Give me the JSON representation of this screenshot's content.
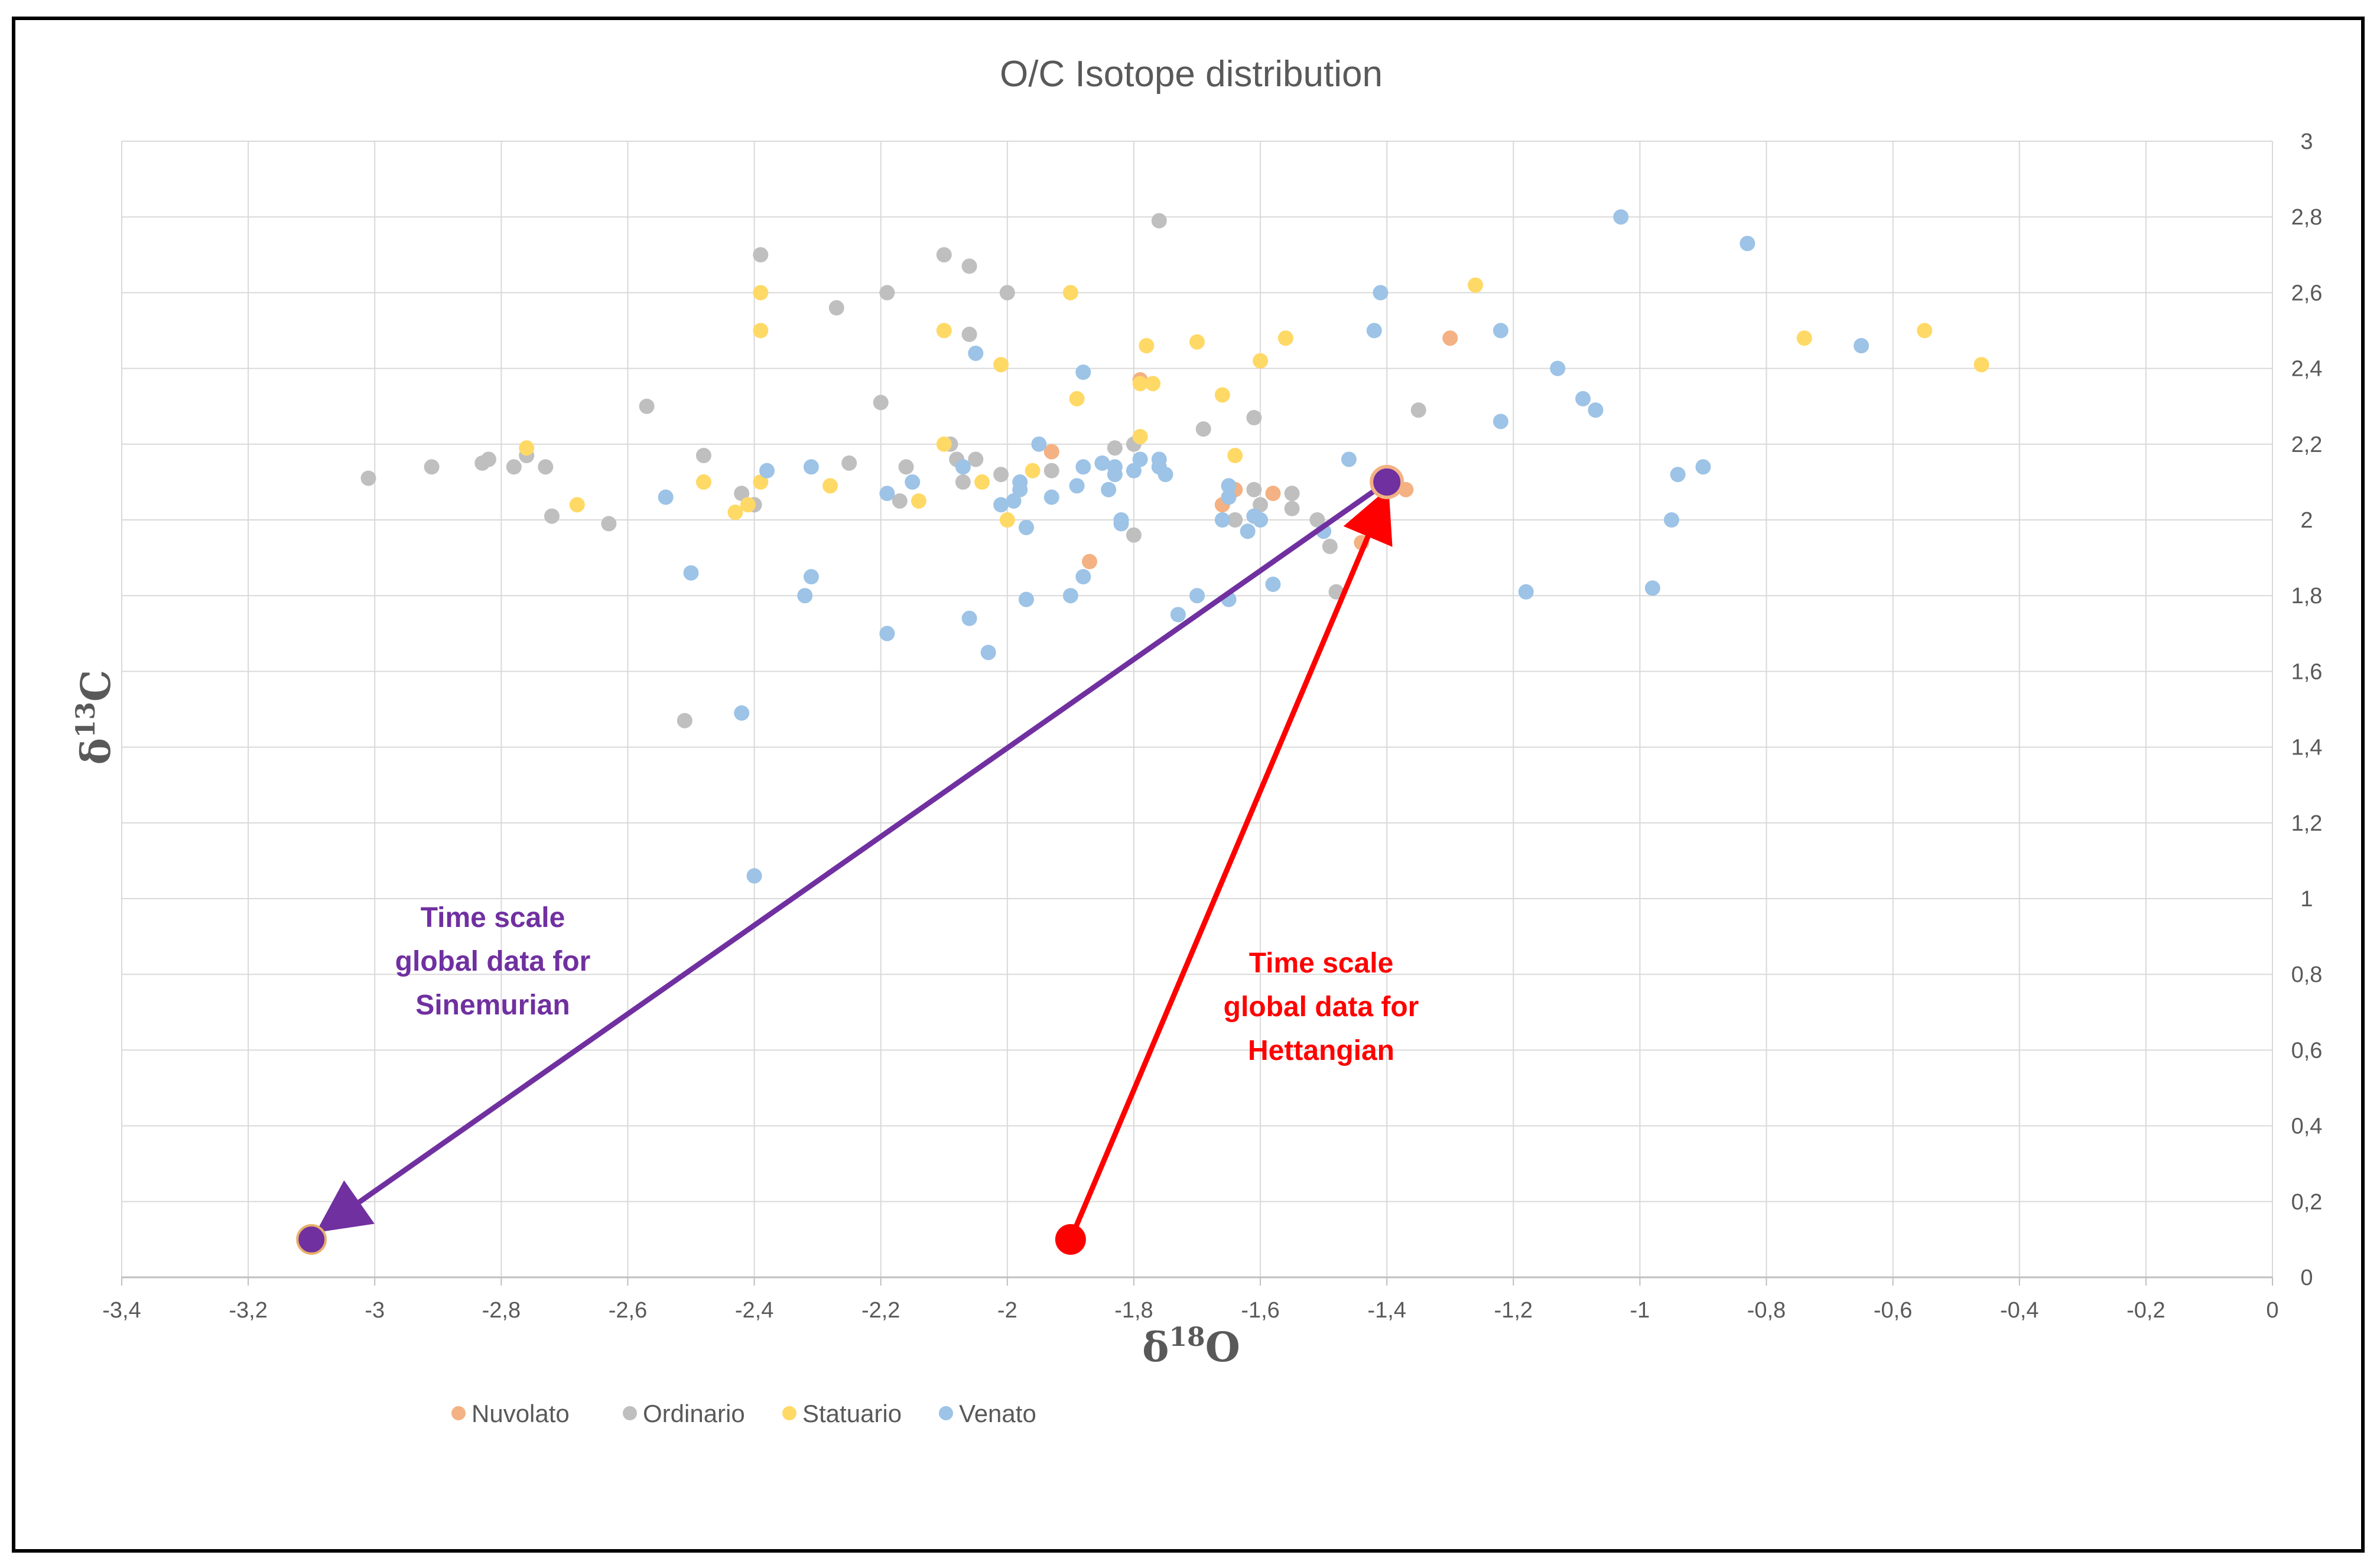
{
  "chart_data": {
    "type": "scatter",
    "title": "O/C Isotope distribution",
    "xlabel": {
      "base": "δ",
      "sup": "18",
      "rest": "O"
    },
    "ylabel": {
      "base": "δ",
      "sup": "13",
      "rest": "C"
    },
    "xlim": [
      -3.4,
      0
    ],
    "ylim": [
      0,
      3
    ],
    "xticks": [
      -3.4,
      -3.2,
      -3.0,
      -2.8,
      -2.6,
      -2.4,
      -2.2,
      -2.0,
      -1.8,
      -1.6,
      -1.4,
      -1.2,
      -1.0,
      -0.8,
      -0.6,
      -0.4,
      -0.2,
      0
    ],
    "xtick_labels": [
      "-3,4",
      "-3,2",
      "-3",
      "-2,8",
      "-2,6",
      "-2,4",
      "-2,2",
      "-2",
      "-1,8",
      "-1,6",
      "-1,4",
      "-1,2",
      "-1",
      "-0,8",
      "-0,6",
      "-0,4",
      "-0,2",
      "0"
    ],
    "yticks": [
      0,
      0.2,
      0.4,
      0.6,
      0.8,
      1.0,
      1.2,
      1.4,
      1.6,
      1.8,
      2.0,
      2.2,
      2.4,
      2.6,
      2.8,
      3.0
    ],
    "ytick_labels": [
      "0",
      "0,2",
      "0,4",
      "0,6",
      "0,8",
      "1",
      "1,2",
      "1,4",
      "1,6",
      "1,8",
      "2",
      "2,2",
      "2,4",
      "2,6",
      "2,8",
      "3"
    ],
    "grid": true,
    "legend_position": "bottom-left",
    "series": [
      {
        "name": "Nuvolato",
        "color": "#F4B183",
        "points": [
          [
            -1.93,
            2.18
          ],
          [
            -1.87,
            1.89
          ],
          [
            -1.79,
            2.37
          ],
          [
            -1.66,
            2.04
          ],
          [
            -1.64,
            2.08
          ],
          [
            -1.58,
            2.07
          ],
          [
            -1.44,
            1.94
          ],
          [
            -1.39,
            2.11
          ],
          [
            -1.37,
            2.08
          ],
          [
            -1.3,
            2.48
          ]
        ]
      },
      {
        "name": "Ordinario",
        "color": "#BFBFBF",
        "points": [
          [
            -3.01,
            2.11
          ],
          [
            -2.91,
            2.14
          ],
          [
            -2.83,
            2.15
          ],
          [
            -2.82,
            2.16
          ],
          [
            -2.78,
            2.14
          ],
          [
            -2.76,
            2.17
          ],
          [
            -2.73,
            2.14
          ],
          [
            -2.72,
            2.01
          ],
          [
            -2.63,
            1.99
          ],
          [
            -2.57,
            2.3
          ],
          [
            -2.51,
            1.47
          ],
          [
            -2.48,
            2.17
          ],
          [
            -2.42,
            2.07
          ],
          [
            -2.4,
            2.04
          ],
          [
            -2.39,
            2.7
          ],
          [
            -2.27,
            2.56
          ],
          [
            -2.25,
            2.15
          ],
          [
            -2.2,
            2.31
          ],
          [
            -2.19,
            2.6
          ],
          [
            -2.17,
            2.05
          ],
          [
            -2.16,
            2.14
          ],
          [
            -2.1,
            2.7
          ],
          [
            -2.09,
            2.2
          ],
          [
            -2.08,
            2.16
          ],
          [
            -2.07,
            2.1
          ],
          [
            -2.06,
            2.67
          ],
          [
            -2.06,
            2.49
          ],
          [
            -2.05,
            2.16
          ],
          [
            -2.01,
            2.12
          ],
          [
            -2.0,
            2.6
          ],
          [
            -1.93,
            2.13
          ],
          [
            -1.83,
            2.19
          ],
          [
            -1.8,
            2.2
          ],
          [
            -1.8,
            1.96
          ],
          [
            -1.76,
            2.79
          ],
          [
            -1.69,
            2.24
          ],
          [
            -1.64,
            2.0
          ],
          [
            -1.61,
            2.27
          ],
          [
            -1.61,
            2.08
          ],
          [
            -1.6,
            2.04
          ],
          [
            -1.55,
            2.07
          ],
          [
            -1.55,
            2.03
          ],
          [
            -1.51,
            2.0
          ],
          [
            -1.49,
            1.93
          ],
          [
            -1.48,
            1.81
          ],
          [
            -1.35,
            2.29
          ]
        ]
      },
      {
        "name": "Statuario",
        "color": "#FFD966",
        "points": [
          [
            -2.76,
            2.19
          ],
          [
            -2.68,
            2.04
          ],
          [
            -2.48,
            2.1
          ],
          [
            -2.43,
            2.02
          ],
          [
            -2.41,
            2.04
          ],
          [
            -2.39,
            2.6
          ],
          [
            -2.39,
            2.5
          ],
          [
            -2.39,
            2.1
          ],
          [
            -2.28,
            2.09
          ],
          [
            -2.14,
            2.05
          ],
          [
            -2.1,
            2.5
          ],
          [
            -2.1,
            2.2
          ],
          [
            -2.04,
            2.1
          ],
          [
            -2.01,
            2.41
          ],
          [
            -2.0,
            2.0
          ],
          [
            -1.96,
            2.13
          ],
          [
            -1.9,
            2.6
          ],
          [
            -1.89,
            2.32
          ],
          [
            -1.79,
            2.22
          ],
          [
            -1.79,
            2.36
          ],
          [
            -1.78,
            2.46
          ],
          [
            -1.77,
            2.36
          ],
          [
            -1.7,
            2.47
          ],
          [
            -1.66,
            2.33
          ],
          [
            -1.64,
            2.17
          ],
          [
            -1.6,
            2.42
          ],
          [
            -1.56,
            2.48
          ],
          [
            -1.26,
            2.62
          ],
          [
            -0.74,
            2.48
          ],
          [
            -0.55,
            2.5
          ],
          [
            -0.46,
            2.41
          ]
        ]
      },
      {
        "name": "Venato",
        "color": "#9DC3E6",
        "points": [
          [
            -2.54,
            2.06
          ],
          [
            -2.5,
            1.86
          ],
          [
            -2.42,
            1.49
          ],
          [
            -2.4,
            1.06
          ],
          [
            -2.38,
            2.13
          ],
          [
            -2.32,
            1.8
          ],
          [
            -2.31,
            1.85
          ],
          [
            -2.31,
            2.14
          ],
          [
            -2.19,
            2.07
          ],
          [
            -2.19,
            1.7
          ],
          [
            -2.15,
            2.1
          ],
          [
            -2.07,
            2.14
          ],
          [
            -2.06,
            1.74
          ],
          [
            -2.05,
            2.44
          ],
          [
            -2.03,
            1.65
          ],
          [
            -2.01,
            2.04
          ],
          [
            -1.99,
            2.05
          ],
          [
            -1.98,
            2.08
          ],
          [
            -1.98,
            2.1
          ],
          [
            -1.97,
            1.98
          ],
          [
            -1.97,
            1.79
          ],
          [
            -1.95,
            2.2
          ],
          [
            -1.93,
            2.06
          ],
          [
            -1.9,
            1.8
          ],
          [
            -1.89,
            2.09
          ],
          [
            -1.88,
            2.14
          ],
          [
            -1.88,
            1.85
          ],
          [
            -1.88,
            2.39
          ],
          [
            -1.85,
            2.15
          ],
          [
            -1.84,
            2.08
          ],
          [
            -1.83,
            2.14
          ],
          [
            -1.83,
            2.12
          ],
          [
            -1.82,
            1.99
          ],
          [
            -1.82,
            2.0
          ],
          [
            -1.8,
            2.13
          ],
          [
            -1.79,
            2.16
          ],
          [
            -1.76,
            2.16
          ],
          [
            -1.76,
            2.14
          ],
          [
            -1.75,
            2.12
          ],
          [
            -1.73,
            1.75
          ],
          [
            -1.7,
            1.8
          ],
          [
            -1.66,
            2.0
          ],
          [
            -1.65,
            2.09
          ],
          [
            -1.65,
            2.06
          ],
          [
            -1.65,
            1.79
          ],
          [
            -1.62,
            1.97
          ],
          [
            -1.61,
            2.01
          ],
          [
            -1.6,
            2.0
          ],
          [
            -1.58,
            1.83
          ],
          [
            -1.5,
            1.97
          ],
          [
            -1.46,
            2.16
          ],
          [
            -1.42,
            2.5
          ],
          [
            -1.41,
            2.6
          ],
          [
            -1.22,
            2.5
          ],
          [
            -1.22,
            2.26
          ],
          [
            -1.18,
            1.81
          ],
          [
            -1.13,
            2.4
          ],
          [
            -1.09,
            2.32
          ],
          [
            -1.07,
            2.29
          ],
          [
            -1.03,
            2.8
          ],
          [
            -0.98,
            1.82
          ],
          [
            -0.95,
            2.0
          ],
          [
            -0.94,
            2.12
          ],
          [
            -0.9,
            2.14
          ],
          [
            -0.83,
            2.73
          ],
          [
            -0.65,
            2.46
          ]
        ]
      }
    ],
    "annotations": [
      {
        "name": "sinemurian",
        "color": "#7030A0",
        "from": [
          -1.4,
          2.1
        ],
        "to": [
          -3.1,
          0.1
        ],
        "label_lines": [
          "Time scale",
          "global data for",
          "Sinemurian"
        ]
      },
      {
        "name": "hettangian",
        "color": "#FF0000",
        "from": [
          -1.9,
          0.1
        ],
        "to": [
          -1.4,
          2.1
        ],
        "label_lines": [
          "Time scale",
          "global data for",
          "Hettangian"
        ]
      }
    ]
  }
}
